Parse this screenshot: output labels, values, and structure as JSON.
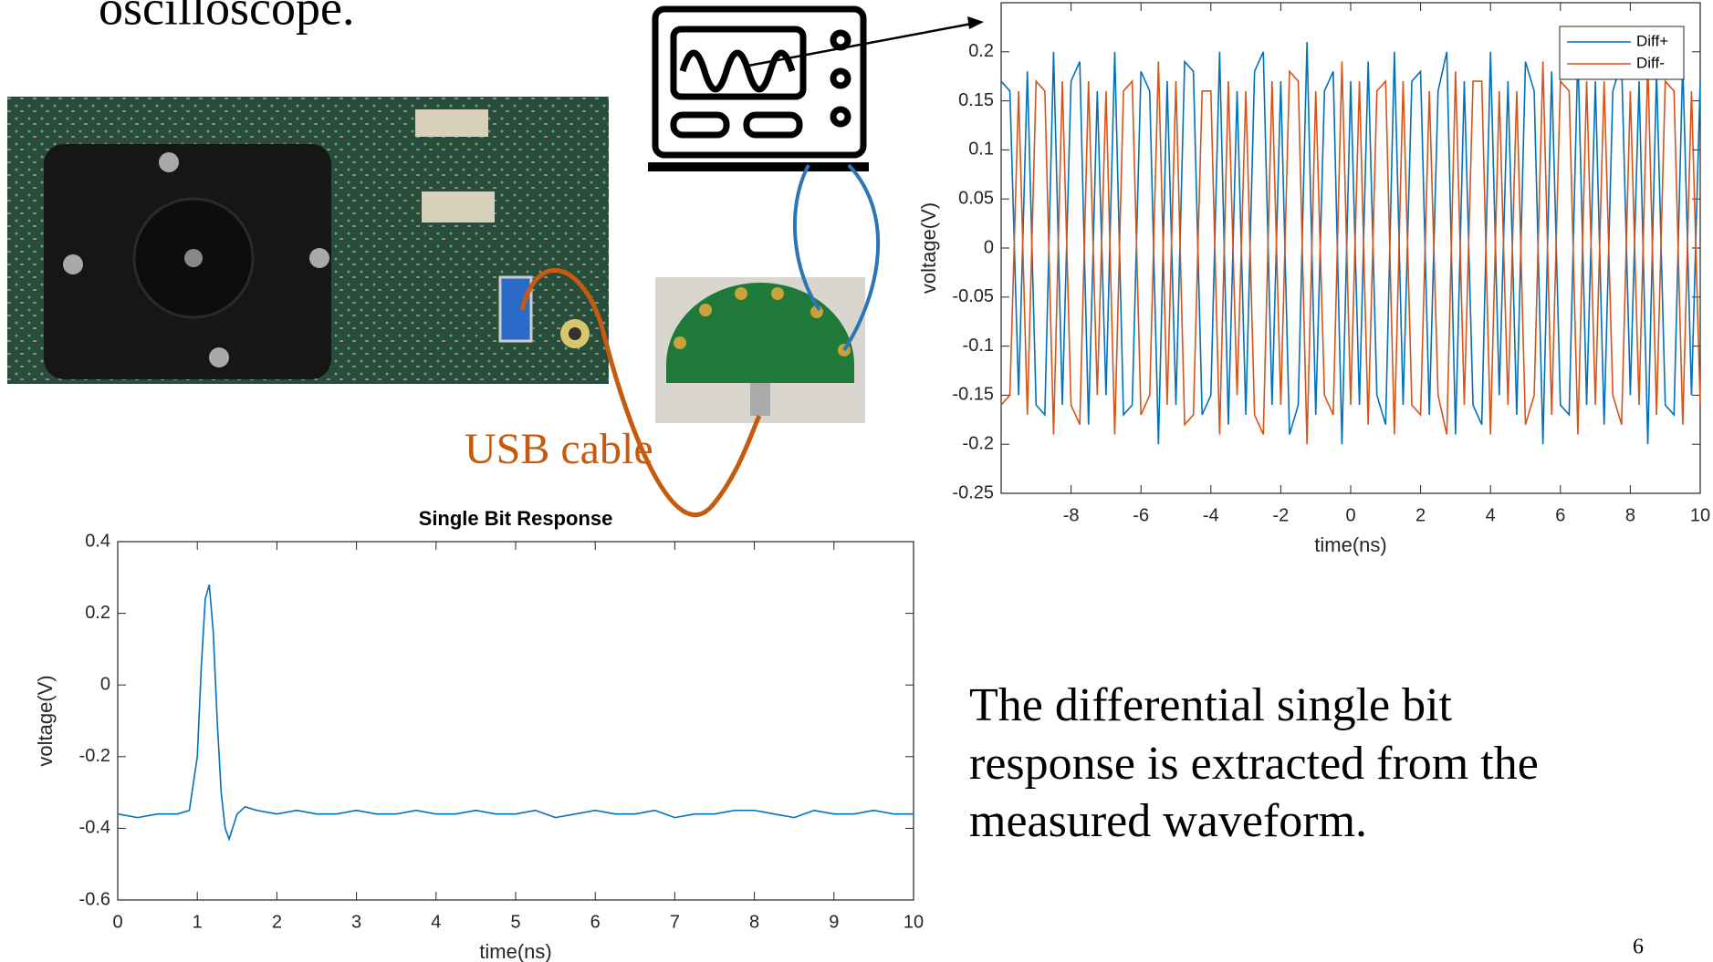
{
  "slide": {
    "heading_fragment": "oscilloscope.",
    "cable_label": "USB cable",
    "caption_lines": [
      "The differential single bit",
      "response is extracted from the",
      "measured waveform."
    ],
    "page_number": "6"
  },
  "chart_data": [
    {
      "type": "line",
      "x_label": "time(ns)",
      "y_label": "voltage(V)",
      "xlim": [
        -10,
        10
      ],
      "xticks": [
        -8,
        -6,
        -4,
        -2,
        0,
        2,
        4,
        6,
        8,
        10
      ],
      "ylim": [
        -0.25,
        0.25
      ],
      "yticks": [
        -0.25,
        -0.2,
        -0.15,
        -0.1,
        -0.05,
        0,
        0.05,
        0.1,
        0.15,
        0.2
      ],
      "grid": false,
      "legend": "northeast",
      "x": [
        -10,
        -9.75,
        -9.5,
        -9.25,
        -9,
        -8.75,
        -8.5,
        -8.25,
        -8,
        -7.75,
        -7.5,
        -7.25,
        -7,
        -6.75,
        -6.5,
        -6.25,
        -6,
        -5.75,
        -5.5,
        -5.25,
        -5,
        -4.75,
        -4.5,
        -4.25,
        -4,
        -3.75,
        -3.5,
        -3.25,
        -3,
        -2.75,
        -2.5,
        -2.25,
        -2,
        -1.75,
        -1.5,
        -1.25,
        -1,
        -0.75,
        -0.5,
        -0.25,
        0,
        0.25,
        0.5,
        0.75,
        1,
        1.25,
        1.5,
        1.75,
        2,
        2.25,
        2.5,
        2.75,
        3,
        3.25,
        3.5,
        3.75,
        4,
        4.25,
        4.5,
        4.75,
        5,
        5.25,
        5.5,
        5.75,
        6,
        6.25,
        6.5,
        6.75,
        7,
        7.25,
        7.5,
        7.75,
        8,
        8.25,
        8.5,
        8.75,
        9,
        9.25,
        9.5,
        9.75,
        10
      ],
      "series": [
        {
          "name": "Diff+",
          "color": "#0072bd",
          "values": [
            0.17,
            0.16,
            -0.15,
            0.18,
            -0.16,
            -0.17,
            0.2,
            -0.16,
            0.17,
            0.19,
            -0.18,
            0.16,
            -0.15,
            0.2,
            -0.17,
            -0.16,
            0.18,
            0.16,
            -0.2,
            0.17,
            -0.16,
            0.19,
            0.18,
            -0.17,
            -0.15,
            0.2,
            -0.18,
            0.16,
            -0.17,
            0.18,
            0.2,
            -0.16,
            0.17,
            -0.19,
            -0.16,
            0.21,
            -0.17,
            0.16,
            0.18,
            -0.2,
            0.17,
            -0.16,
            0.19,
            -0.15,
            -0.18,
            0.2,
            -0.16,
            0.17,
            0.18,
            -0.17,
            0.16,
            0.2,
            -0.19,
            0.17,
            -0.16,
            -0.18,
            0.2,
            -0.15,
            0.17,
            -0.17,
            0.19,
            0.16,
            -0.2,
            0.18,
            -0.16,
            -0.17,
            0.2,
            -0.16,
            0.17,
            -0.18,
            0.16,
            0.19,
            -0.15,
            0.17,
            -0.2,
            0.18,
            -0.16,
            -0.17,
            0.19,
            -0.15,
            0.17
          ]
        },
        {
          "name": "Diff-",
          "color": "#d95319",
          "values": [
            -0.16,
            -0.15,
            0.16,
            -0.17,
            0.17,
            0.16,
            -0.19,
            0.17,
            -0.16,
            -0.18,
            0.17,
            -0.15,
            0.16,
            -0.19,
            0.16,
            0.17,
            -0.17,
            -0.15,
            0.19,
            -0.16,
            0.17,
            -0.18,
            -0.17,
            0.16,
            0.16,
            -0.19,
            0.17,
            -0.15,
            0.16,
            -0.17,
            -0.19,
            0.17,
            -0.16,
            0.18,
            0.17,
            -0.2,
            0.16,
            -0.15,
            -0.17,
            0.19,
            -0.16,
            0.17,
            -0.18,
            0.16,
            0.17,
            -0.19,
            0.17,
            -0.16,
            -0.17,
            0.16,
            -0.15,
            -0.19,
            0.18,
            -0.16,
            0.17,
            0.17,
            -0.19,
            0.16,
            -0.16,
            0.16,
            -0.18,
            -0.15,
            0.19,
            -0.17,
            0.17,
            0.16,
            -0.19,
            0.17,
            -0.16,
            0.17,
            -0.15,
            -0.18,
            0.16,
            -0.16,
            0.19,
            -0.17,
            0.17,
            0.16,
            -0.18,
            0.16,
            -0.16
          ]
        }
      ]
    },
    {
      "type": "line",
      "title": "Single Bit Response",
      "x_label": "time(ns)",
      "y_label": "voltage(V)",
      "xlim": [
        0,
        10
      ],
      "xticks": [
        0,
        1,
        2,
        3,
        4,
        5,
        6,
        7,
        8,
        9,
        10
      ],
      "ylim": [
        -0.6,
        0.4
      ],
      "yticks": [
        -0.6,
        -0.4,
        -0.2,
        0,
        0.2,
        0.4
      ],
      "grid": false,
      "color": "#0072bd",
      "x": [
        0,
        0.25,
        0.5,
        0.75,
        0.9,
        1.0,
        1.05,
        1.1,
        1.15,
        1.2,
        1.25,
        1.3,
        1.35,
        1.4,
        1.5,
        1.6,
        1.75,
        2,
        2.25,
        2.5,
        2.75,
        3,
        3.25,
        3.5,
        3.75,
        4,
        4.25,
        4.5,
        4.75,
        5,
        5.25,
        5.5,
        5.75,
        6,
        6.25,
        6.5,
        6.75,
        7,
        7.25,
        7.5,
        7.75,
        8,
        8.25,
        8.5,
        8.75,
        9,
        9.25,
        9.5,
        9.75,
        10
      ],
      "values": [
        -0.36,
        -0.37,
        -0.36,
        -0.36,
        -0.35,
        -0.2,
        0.05,
        0.24,
        0.28,
        0.15,
        -0.1,
        -0.3,
        -0.4,
        -0.43,
        -0.36,
        -0.34,
        -0.35,
        -0.36,
        -0.35,
        -0.36,
        -0.36,
        -0.35,
        -0.36,
        -0.36,
        -0.35,
        -0.36,
        -0.36,
        -0.35,
        -0.36,
        -0.36,
        -0.35,
        -0.37,
        -0.36,
        -0.35,
        -0.36,
        -0.36,
        -0.35,
        -0.37,
        -0.36,
        -0.36,
        -0.35,
        -0.35,
        -0.36,
        -0.37,
        -0.35,
        -0.36,
        -0.36,
        -0.35,
        -0.36,
        -0.36
      ]
    }
  ]
}
